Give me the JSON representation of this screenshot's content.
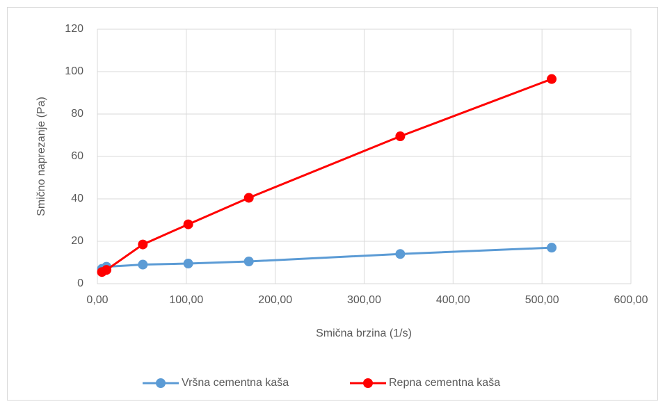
{
  "chart_data": {
    "type": "line",
    "x_label": "Smična brzina (1/s)",
    "y_label": "Smično naprezanje (Pa)",
    "x": [
      5.11,
      10.22,
      51.1,
      102.2,
      170.3,
      340.6,
      510.9
    ],
    "series": [
      {
        "name": "Vršna cementna kaša",
        "color": "#5b9bd5",
        "values": [
          7,
          8,
          9,
          9.5,
          10.5,
          14,
          17
        ]
      },
      {
        "name": "Repna cementna kaša",
        "color": "#ff0000",
        "values": [
          5.5,
          6.5,
          18.5,
          28,
          40.5,
          69.5,
          96.5
        ]
      }
    ],
    "xlim": [
      0,
      600
    ],
    "xticks": [
      {
        "value": 0,
        "label": "0,00"
      },
      {
        "value": 100,
        "label": "100,00"
      },
      {
        "value": 200,
        "label": "200,00"
      },
      {
        "value": 300,
        "label": "300,00"
      },
      {
        "value": 400,
        "label": "400,00"
      },
      {
        "value": 500,
        "label": "500,00"
      },
      {
        "value": 600,
        "label": "600,00"
      }
    ],
    "ylim": [
      0,
      120
    ],
    "yticks": [
      0,
      20,
      40,
      60,
      80,
      100,
      120
    ],
    "grid": true,
    "legend": "bottom"
  }
}
